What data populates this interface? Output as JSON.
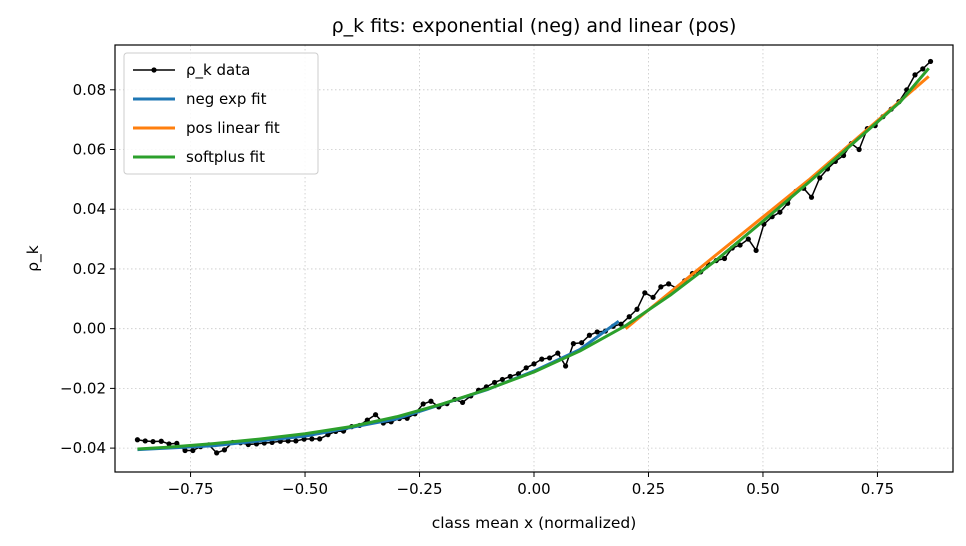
{
  "chart_data": {
    "type": "line",
    "title": "ρ_k fits: exponential (neg) and linear (pos)",
    "xlabel": "class mean x (normalized)",
    "ylabel": "ρ_k",
    "xlim": [
      -0.915,
      0.915
    ],
    "ylim": [
      -0.048,
      0.095
    ],
    "x_ticks": [
      -0.75,
      -0.5,
      -0.25,
      0.0,
      0.25,
      0.5,
      0.75
    ],
    "x_tick_labels": [
      "−0.75",
      "−0.50",
      "−0.25",
      "0.00",
      "0.25",
      "0.50",
      "0.75"
    ],
    "y_ticks": [
      -0.04,
      -0.02,
      0.0,
      0.02,
      0.04,
      0.06,
      0.08
    ],
    "y_tick_labels": [
      "−0.04",
      "−0.02",
      "0.00",
      "0.02",
      "0.04",
      "0.06",
      "0.08"
    ],
    "grid": true,
    "legend_position": "top-left",
    "series": [
      {
        "name": "ρ_k data",
        "color": "#000000",
        "style": "line-with-markers",
        "points": [
          [
            -0.866,
            -0.0372
          ],
          [
            -0.849,
            -0.0376
          ],
          [
            -0.832,
            -0.0378
          ],
          [
            -0.814,
            -0.0377
          ],
          [
            -0.797,
            -0.0386
          ],
          [
            -0.78,
            -0.0384
          ],
          [
            -0.762,
            -0.0408
          ],
          [
            -0.745,
            -0.0408
          ],
          [
            -0.728,
            -0.0395
          ],
          [
            -0.71,
            -0.0389
          ],
          [
            -0.693,
            -0.0416
          ],
          [
            -0.676,
            -0.0406
          ],
          [
            -0.658,
            -0.0381
          ],
          [
            -0.641,
            -0.0382
          ],
          [
            -0.624,
            -0.0388
          ],
          [
            -0.606,
            -0.0386
          ],
          [
            -0.589,
            -0.0383
          ],
          [
            -0.572,
            -0.0381
          ],
          [
            -0.554,
            -0.0377
          ],
          [
            -0.537,
            -0.0376
          ],
          [
            -0.52,
            -0.0376
          ],
          [
            -0.502,
            -0.037
          ],
          [
            -0.485,
            -0.0369
          ],
          [
            -0.468,
            -0.0369
          ],
          [
            -0.45,
            -0.0355
          ],
          [
            -0.433,
            -0.0344
          ],
          [
            -0.416,
            -0.0343
          ],
          [
            -0.398,
            -0.0328
          ],
          [
            -0.381,
            -0.0324
          ],
          [
            -0.364,
            -0.0306
          ],
          [
            -0.346,
            -0.0288
          ],
          [
            -0.329,
            -0.0316
          ],
          [
            -0.312,
            -0.0312
          ],
          [
            -0.294,
            -0.0301
          ],
          [
            -0.277,
            -0.03
          ],
          [
            -0.26,
            -0.0285
          ],
          [
            -0.242,
            -0.0252
          ],
          [
            -0.225,
            -0.0243
          ],
          [
            -0.208,
            -0.0262
          ],
          [
            -0.19,
            -0.0251
          ],
          [
            -0.173,
            -0.0237
          ],
          [
            -0.156,
            -0.0247
          ],
          [
            -0.138,
            -0.0225
          ],
          [
            -0.121,
            -0.0206
          ],
          [
            -0.104,
            -0.0195
          ],
          [
            -0.086,
            -0.018
          ],
          [
            -0.069,
            -0.017
          ],
          [
            -0.052,
            -0.016
          ],
          [
            -0.034,
            -0.0151
          ],
          [
            -0.017,
            -0.0131
          ],
          [
            0.0,
            -0.0118
          ],
          [
            0.017,
            -0.0102
          ],
          [
            0.034,
            -0.0098
          ],
          [
            0.052,
            -0.0082
          ],
          [
            0.069,
            -0.0125
          ],
          [
            0.086,
            -0.005
          ],
          [
            0.104,
            -0.0047
          ],
          [
            0.121,
            -0.0022
          ],
          [
            0.138,
            -0.0011
          ],
          [
            0.156,
            -0.0008
          ],
          [
            0.173,
            0.0008
          ],
          [
            0.19,
            0.0015
          ],
          [
            0.208,
            0.004
          ],
          [
            0.225,
            0.0065
          ],
          [
            0.242,
            0.012
          ],
          [
            0.26,
            0.0105
          ],
          [
            0.277,
            0.014
          ],
          [
            0.294,
            0.015
          ],
          [
            0.312,
            0.0135
          ],
          [
            0.329,
            0.016
          ],
          [
            0.346,
            0.0185
          ],
          [
            0.364,
            0.019
          ],
          [
            0.381,
            0.0215
          ],
          [
            0.398,
            0.0228
          ],
          [
            0.416,
            0.0235
          ],
          [
            0.433,
            0.027
          ],
          [
            0.45,
            0.028
          ],
          [
            0.468,
            0.03
          ],
          [
            0.485,
            0.0262
          ],
          [
            0.502,
            0.035
          ],
          [
            0.52,
            0.0375
          ],
          [
            0.537,
            0.039
          ],
          [
            0.554,
            0.042
          ],
          [
            0.572,
            0.046
          ],
          [
            0.589,
            0.047
          ],
          [
            0.606,
            0.044
          ],
          [
            0.624,
            0.0505
          ],
          [
            0.641,
            0.0535
          ],
          [
            0.658,
            0.056
          ],
          [
            0.676,
            0.058
          ],
          [
            0.693,
            0.062
          ],
          [
            0.71,
            0.06
          ],
          [
            0.728,
            0.067
          ],
          [
            0.745,
            0.068
          ],
          [
            0.762,
            0.071
          ],
          [
            0.78,
            0.0735
          ],
          [
            0.797,
            0.076
          ],
          [
            0.814,
            0.08
          ],
          [
            0.832,
            0.085
          ],
          [
            0.849,
            0.087
          ],
          [
            0.866,
            0.0895
          ]
        ]
      },
      {
        "name": "neg exp fit",
        "color": "#1f77b4",
        "style": "line",
        "points": [
          [
            -0.866,
            -0.0405
          ],
          [
            -0.7,
            -0.0392
          ],
          [
            -0.5,
            -0.036
          ],
          [
            -0.3,
            -0.0302
          ],
          [
            -0.1,
            -0.0203
          ],
          [
            0.0,
            -0.0142
          ],
          [
            0.1,
            -0.007
          ],
          [
            0.185,
            0.0025
          ]
        ]
      },
      {
        "name": "pos linear fit",
        "color": "#ff7f0e",
        "style": "line",
        "points": [
          [
            0.2,
            0.0
          ],
          [
            0.4,
            0.025
          ],
          [
            0.6,
            0.0498
          ],
          [
            0.862,
            0.0845
          ]
        ]
      },
      {
        "name": "softplus fit",
        "color": "#2ca02c",
        "style": "line",
        "points": [
          [
            -0.866,
            -0.0403
          ],
          [
            -0.8,
            -0.0397
          ],
          [
            -0.7,
            -0.0385
          ],
          [
            -0.6,
            -0.037
          ],
          [
            -0.5,
            -0.0352
          ],
          [
            -0.4,
            -0.0328
          ],
          [
            -0.3,
            -0.0295
          ],
          [
            -0.2,
            -0.0252
          ],
          [
            -0.1,
            -0.0202
          ],
          [
            0.0,
            -0.0145
          ],
          [
            0.1,
            -0.0075
          ],
          [
            0.2,
            0.001
          ],
          [
            0.3,
            0.0115
          ],
          [
            0.4,
            0.0232
          ],
          [
            0.5,
            0.036
          ],
          [
            0.6,
            0.049
          ],
          [
            0.7,
            0.0625
          ],
          [
            0.8,
            0.076
          ],
          [
            0.862,
            0.0872
          ]
        ]
      }
    ]
  }
}
